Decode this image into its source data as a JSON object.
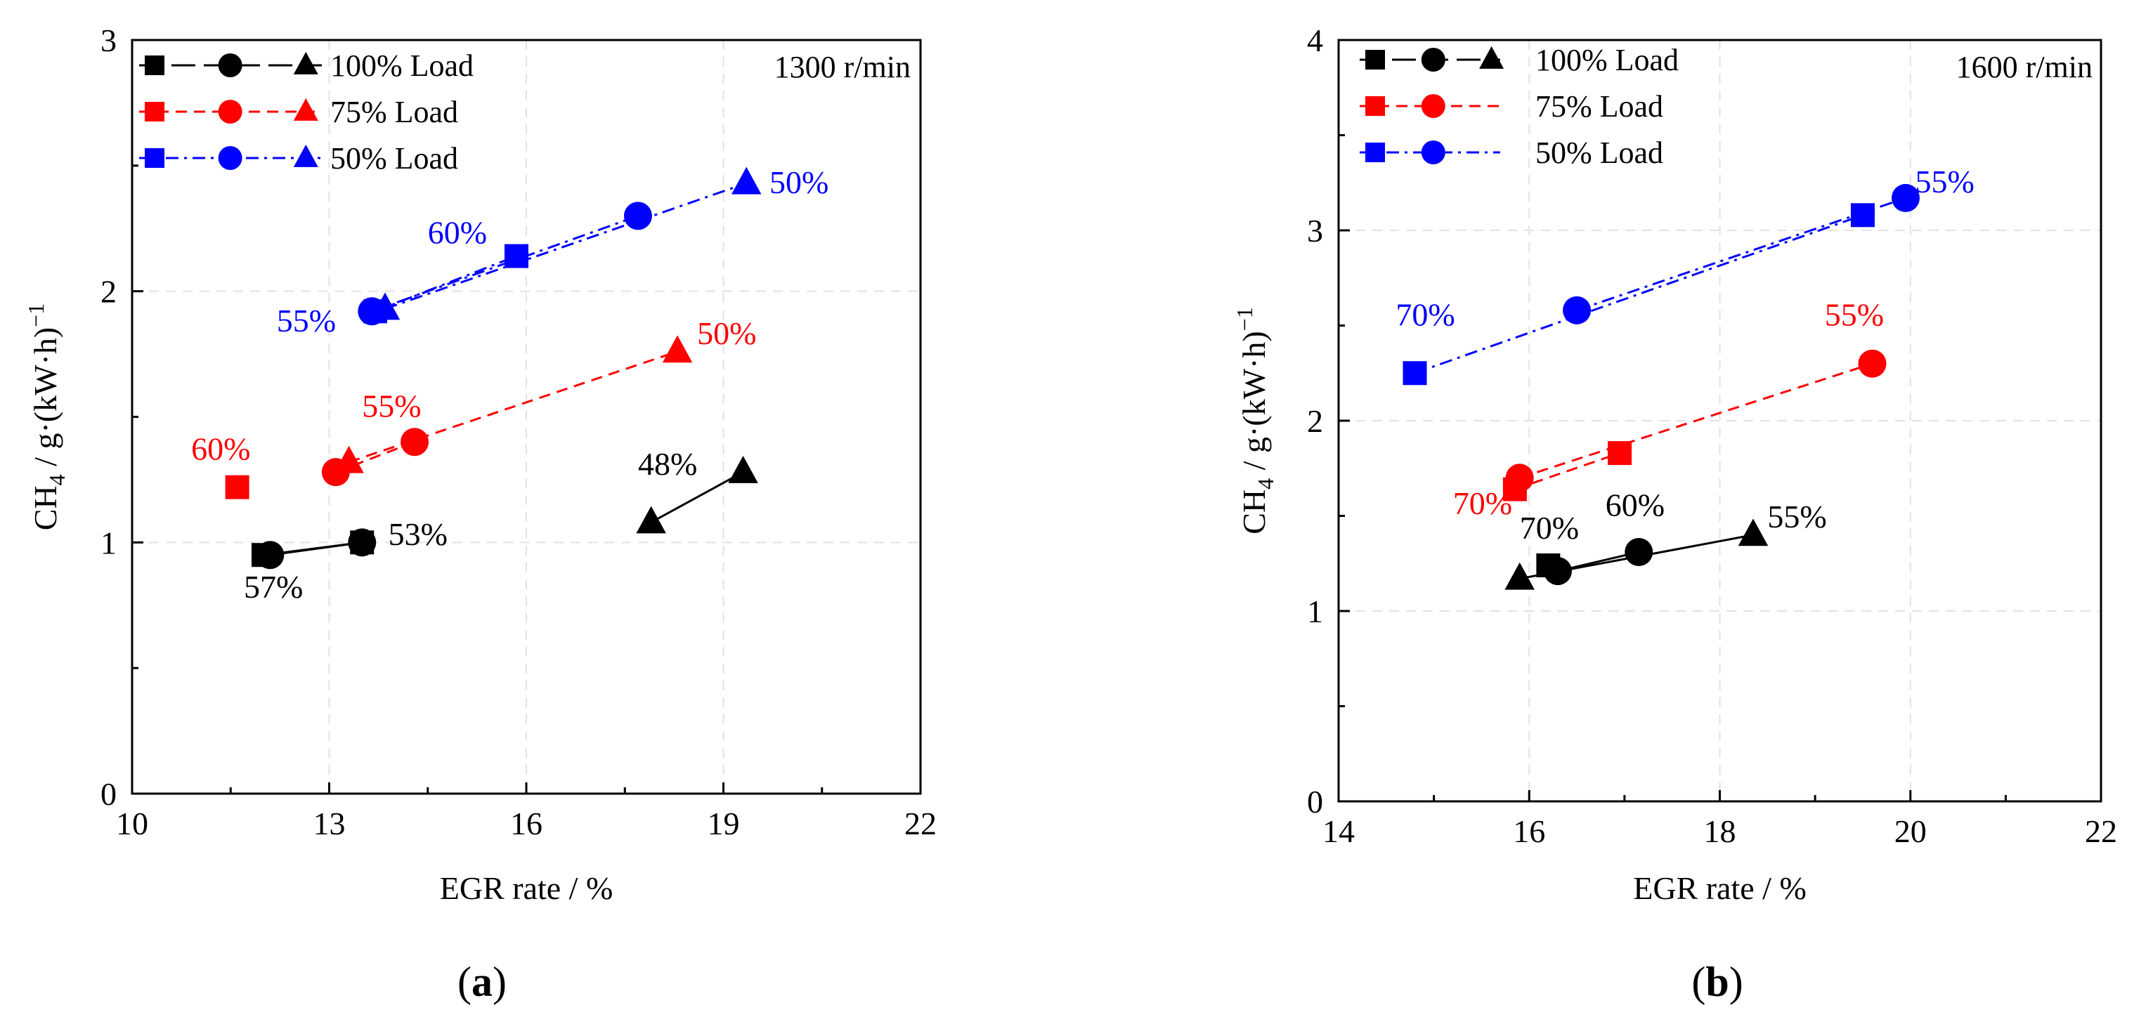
{
  "colors": {
    "load_100": "#000000",
    "load_75": "#ff0000",
    "load_50": "#0000ff"
  },
  "chart_data": [
    {
      "type": "scatter",
      "panel_label_prefix": "(",
      "panel_label_letter": "a",
      "panel_label_suffix": ")",
      "speed_label": "1300 r/min",
      "xlabel": "EGR rate / %",
      "ylabel_main": "CH",
      "ylabel_sub": "4",
      "ylabel_rest": " / g·(kW·h)",
      "ylabel_sup": "−1",
      "xlim": [
        10,
        22
      ],
      "ylim": [
        0,
        3
      ],
      "xticks": [
        10,
        13,
        16,
        19,
        22
      ],
      "yticks": [
        0,
        1,
        2,
        3
      ],
      "xtick_labels": [
        "10",
        "13",
        "16",
        "19",
        "22"
      ],
      "ytick_labels": [
        "0",
        "1",
        "2",
        "3"
      ],
      "grid": true,
      "legend_position": "top-left",
      "legend": [
        {
          "label": "100% Load",
          "color": "#000000",
          "dash": "long"
        },
        {
          "label": "75% Load",
          "color": "#ff0000",
          "dash": "dashed"
        },
        {
          "label": "50% Load",
          "color": "#0000ff",
          "dash": "dashdot"
        }
      ],
      "series": [
        {
          "name": "100% Load square",
          "load": "100% Load",
          "marker": "square",
          "color": "#000000",
          "dash": "solid",
          "x": [
            12.0,
            13.5
          ],
          "y": [
            0.95,
            1.0
          ]
        },
        {
          "name": "100% Load circle",
          "load": "100% Load",
          "marker": "circle",
          "color": "#000000",
          "dash": "solid",
          "x": [
            12.1,
            13.5
          ],
          "y": [
            0.95,
            1.0
          ]
        },
        {
          "name": "100% Load triangle",
          "load": "100% Load",
          "marker": "triangle",
          "color": "#000000",
          "dash": "solid",
          "x": [
            17.9,
            19.3
          ],
          "y": [
            1.08,
            1.28
          ]
        },
        {
          "name": "75% Load square",
          "load": "75% Load",
          "marker": "square",
          "color": "#ff0000",
          "dash": "dashed",
          "x": [
            11.6
          ],
          "y": [
            1.22
          ]
        },
        {
          "name": "75% Load circle",
          "load": "75% Load",
          "marker": "circle",
          "color": "#ff0000",
          "dash": "dashed",
          "x": [
            13.1,
            14.3
          ],
          "y": [
            1.28,
            1.4
          ]
        },
        {
          "name": "75% Load triangle",
          "load": "75% Load",
          "marker": "triangle",
          "color": "#ff0000",
          "dash": "dashed",
          "x": [
            13.3,
            18.3
          ],
          "y": [
            1.32,
            1.76
          ]
        },
        {
          "name": "50% Load square",
          "load": "50% Load",
          "marker": "square",
          "color": "#0000ff",
          "dash": "dashdot",
          "x": [
            13.7,
            15.85
          ],
          "y": [
            1.92,
            2.14
          ]
        },
        {
          "name": "50% Load circle",
          "load": "50% Load",
          "marker": "circle",
          "color": "#0000ff",
          "dash": "dashdot",
          "x": [
            13.65,
            17.7
          ],
          "y": [
            1.92,
            2.3
          ]
        },
        {
          "name": "50% Load triangle",
          "load": "50% Load",
          "marker": "triangle",
          "color": "#0000ff",
          "dash": "dashdot",
          "x": [
            13.85,
            19.35
          ],
          "y": [
            1.93,
            2.43
          ]
        }
      ],
      "annotations": [
        {
          "text": "57%",
          "x": 11.7,
          "y": 0.78,
          "color": "#000000"
        },
        {
          "text": "53%",
          "x": 13.9,
          "y": 0.99,
          "color": "#000000"
        },
        {
          "text": "48%",
          "x": 17.7,
          "y": 1.27,
          "color": "#000000"
        },
        {
          "text": "60%",
          "x": 10.9,
          "y": 1.33,
          "color": "#ff0000"
        },
        {
          "text": "55%",
          "x": 13.5,
          "y": 1.5,
          "color": "#ff0000"
        },
        {
          "text": "50%",
          "x": 18.6,
          "y": 1.79,
          "color": "#ff0000"
        },
        {
          "text": "55%",
          "x": 12.2,
          "y": 1.84,
          "color": "#0000ff"
        },
        {
          "text": "60%",
          "x": 14.5,
          "y": 2.19,
          "color": "#0000ff"
        },
        {
          "text": "50%",
          "x": 19.7,
          "y": 2.39,
          "color": "#0000ff"
        }
      ]
    },
    {
      "type": "scatter",
      "panel_label_prefix": "(",
      "panel_label_letter": "b",
      "panel_label_suffix": ")",
      "speed_label": "1600 r/min",
      "xlabel": "EGR rate / %",
      "ylabel_main": "CH",
      "ylabel_sub": "4",
      "ylabel_rest": " / g·(kW·h)",
      "ylabel_sup": "−1",
      "xlim": [
        14,
        22
      ],
      "ylim": [
        0,
        4
      ],
      "xticks": [
        14,
        16,
        18,
        20,
        22
      ],
      "yticks": [
        0,
        1,
        2,
        3,
        4
      ],
      "xtick_labels": [
        "14",
        "16",
        "18",
        "20",
        "22"
      ],
      "ytick_labels": [
        "0",
        "1",
        "2",
        "3",
        "4"
      ],
      "grid": true,
      "legend_position": "top-left",
      "legend": [
        {
          "label": "100% Load",
          "color": "#000000",
          "dash": "long",
          "markers": [
            "square",
            "circle",
            "triangle"
          ]
        },
        {
          "label": "75% Load",
          "color": "#ff0000",
          "dash": "dashed",
          "markers": [
            "square",
            "circle"
          ]
        },
        {
          "label": "50% Load",
          "color": "#0000ff",
          "dash": "dashdot",
          "markers": [
            "square",
            "circle"
          ]
        }
      ],
      "series": [
        {
          "name": "100% Load square",
          "load": "100% Load",
          "marker": "square",
          "color": "#000000",
          "dash": "solid",
          "x": [
            16.2
          ],
          "y": [
            1.24
          ]
        },
        {
          "name": "100% Load circle",
          "load": "100% Load",
          "marker": "circle",
          "color": "#000000",
          "dash": "solid",
          "x": [
            16.3,
            17.15
          ],
          "y": [
            1.21,
            1.31
          ]
        },
        {
          "name": "100% Load triangle",
          "load": "100% Load",
          "marker": "triangle",
          "color": "#000000",
          "dash": "solid",
          "x": [
            15.9,
            18.35
          ],
          "y": [
            1.17,
            1.4
          ]
        },
        {
          "name": "75% Load square",
          "load": "75% Load",
          "marker": "square",
          "color": "#ff0000",
          "dash": "dashed",
          "x": [
            15.85,
            16.95
          ],
          "y": [
            1.64,
            1.83
          ]
        },
        {
          "name": "75% Load circle",
          "load": "75% Load",
          "marker": "circle",
          "color": "#ff0000",
          "dash": "dashed",
          "x": [
            15.9,
            19.6
          ],
          "y": [
            1.7,
            2.3
          ]
        },
        {
          "name": "50% Load square",
          "load": "50% Load",
          "marker": "square",
          "color": "#0000ff",
          "dash": "dashdot",
          "x": [
            14.8,
            19.5
          ],
          "y": [
            2.25,
            3.08
          ]
        },
        {
          "name": "50% Load circle",
          "load": "50% Load",
          "marker": "circle",
          "color": "#0000ff",
          "dash": "dashdot",
          "x": [
            16.5,
            19.95
          ],
          "y": [
            2.58,
            3.17
          ]
        }
      ],
      "annotations": [
        {
          "text": "70%",
          "x": 15.9,
          "y": 1.38,
          "color": "#000000"
        },
        {
          "text": "60%",
          "x": 16.8,
          "y": 1.5,
          "color": "#000000"
        },
        {
          "text": "55%",
          "x": 18.5,
          "y": 1.44,
          "color": "#000000"
        },
        {
          "text": "70%",
          "x": 15.2,
          "y": 1.51,
          "color": "#ff0000"
        },
        {
          "text": "55%",
          "x": 19.1,
          "y": 2.5,
          "color": "#ff0000"
        },
        {
          "text": "70%",
          "x": 14.6,
          "y": 2.5,
          "color": "#0000ff"
        },
        {
          "text": "55%",
          "x": 20.05,
          "y": 3.2,
          "color": "#0000ff"
        }
      ]
    }
  ]
}
